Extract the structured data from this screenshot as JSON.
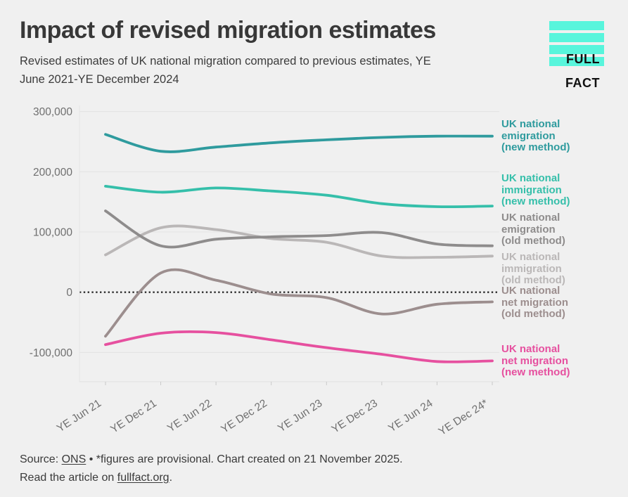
{
  "header": {
    "title": "Impact of revised migration estimates",
    "subtitle_line1": "Revised estimates of UK national migration compared to previous estimates, YE",
    "subtitle_line2": "June 2021-YE December 2024",
    "logo_line1": "FULL",
    "logo_line2": "FACT",
    "logo_color": "#58f5dc",
    "logo_text_color": "#101010"
  },
  "chart_data": {
    "type": "line",
    "title": "Impact of revised migration estimates",
    "categories": [
      "YE Jun 21",
      "YE Dec 21",
      "YE Jun 22",
      "YE Dec 22",
      "YE Jun 23",
      "YE Dec 23",
      "YE Jun 24",
      "YE Dec 24*"
    ],
    "y_ticks": [
      "300,000",
      "200,000",
      "100,000",
      "0",
      "-100,000"
    ],
    "y_tick_values": [
      300000,
      200000,
      100000,
      0,
      -100000
    ],
    "ylim": [
      -148000,
      310000
    ],
    "grid": "horizontal",
    "zero_line_style": "dotted",
    "legend_position": "right-of-lines",
    "units": "people (estimated from chart, nearest 1,000)",
    "series": [
      {
        "label": "UK national\nemigration\n(new method)",
        "name": "UK national emigration (new method)",
        "color": "#2f9b9e",
        "values": [
          262000,
          234000,
          241000,
          248000,
          253000,
          257000,
          259000,
          259000
        ]
      },
      {
        "label": "UK national\nimmigration\n(new method)",
        "name": "UK national immigration (new method)",
        "color": "#35bfaa",
        "values": [
          176000,
          166000,
          173000,
          168000,
          161000,
          147000,
          142000,
          143000
        ]
      },
      {
        "label": "UK national\nemigration\n(old method)",
        "name": "UK national emigration (old method)",
        "color": "#8e8c8c",
        "values": [
          135000,
          77000,
          88000,
          92000,
          94000,
          99000,
          80000,
          77000
        ]
      },
      {
        "label": "UK national\nimmigration\n(old method)",
        "name": "UK national immigration (old method)",
        "color": "#bab7b7",
        "values": [
          62000,
          107000,
          104000,
          89000,
          83000,
          60000,
          58000,
          60000
        ]
      },
      {
        "label": "UK national\nnet migration\n(old method)",
        "name": "UK national net migration (old method)",
        "color": "#9c8e8e",
        "values": [
          -73000,
          32000,
          20000,
          -3000,
          -9000,
          -36000,
          -20000,
          -16000
        ]
      },
      {
        "label": "UK national\nnet migration\n(new method)",
        "name": "UK national net migration (new method)",
        "color": "#e6509f",
        "values": [
          -87000,
          -68000,
          -67000,
          -79000,
          -92000,
          -103000,
          -115000,
          -114000
        ]
      }
    ]
  },
  "footer": {
    "line1_prefix": "Source: ",
    "source_link": "ONS",
    "line1_suffix": " • *figures are provisional. Chart created on 21 November 2025.",
    "line2_prefix": "Read the article on ",
    "article_link": "fullfact.org",
    "line2_suffix": "."
  }
}
